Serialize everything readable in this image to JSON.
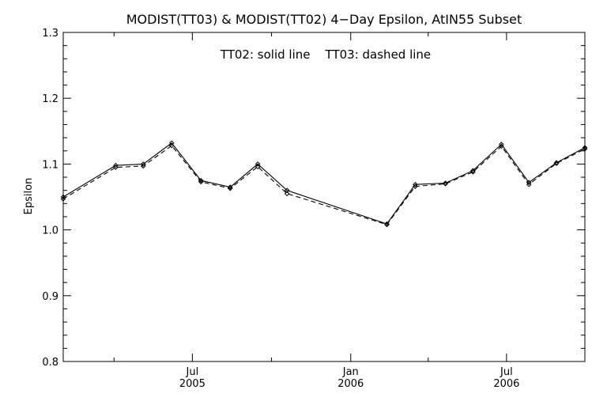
{
  "chart_data": {
    "type": "line",
    "title": "MODIST(TT03) & MODIST(TT02) 4−Day Epsilon, AtIN55 Subset",
    "annotation": "TT02: solid line    TT03: dashed line",
    "xlabel": "",
    "ylabel": "Epsilon",
    "x_type": "date",
    "xlim": [
      "2005-02-01",
      "2006-09-30"
    ],
    "ylim": [
      0.8,
      1.3
    ],
    "y_ticks": [
      0.8,
      0.9,
      1.0,
      1.1,
      1.2,
      1.3
    ],
    "y_tick_labels": [
      "0.8",
      "0.9",
      "1.0",
      "1.1",
      "1.2",
      "1.3"
    ],
    "x_major_ticks": [
      {
        "date": "2005-07-01",
        "label": "Jul",
        "year": "2005"
      },
      {
        "date": "2006-01-01",
        "label": "Jan",
        "year": "2006"
      },
      {
        "date": "2006-07-01",
        "label": "Jul",
        "year": "2006"
      }
    ],
    "x_minor_ticks": [
      "2005-04-01",
      "2005-10-01",
      "2006-04-01"
    ],
    "grid": false,
    "series": [
      {
        "name": "TT02",
        "style": "solid",
        "color": "#000000",
        "points": [
          {
            "x": "2005-02-01",
            "y": 1.05
          },
          {
            "x": "2005-04-03",
            "y": 1.098
          },
          {
            "x": "2005-05-05",
            "y": 1.1
          },
          {
            "x": "2005-06-07",
            "y": 1.132
          },
          {
            "x": "2005-07-11",
            "y": 1.075
          },
          {
            "x": "2005-08-14",
            "y": 1.065
          },
          {
            "x": "2005-09-15",
            "y": 1.1
          },
          {
            "x": "2005-10-19",
            "y": 1.06
          },
          {
            "x": "2006-02-12",
            "y": 1.009
          },
          {
            "x": "2006-03-17",
            "y": 1.069
          },
          {
            "x": "2006-04-21",
            "y": 1.071
          },
          {
            "x": "2006-05-23",
            "y": 1.09
          },
          {
            "x": "2006-06-25",
            "y": 1.13
          },
          {
            "x": "2006-07-27",
            "y": 1.072
          },
          {
            "x": "2006-08-28",
            "y": 1.102
          },
          {
            "x": "2006-09-30",
            "y": 1.125
          }
        ]
      },
      {
        "name": "TT03",
        "style": "dashed",
        "color": "#000000",
        "points": [
          {
            "x": "2005-02-01",
            "y": 1.047
          },
          {
            "x": "2005-04-03",
            "y": 1.095
          },
          {
            "x": "2005-05-05",
            "y": 1.097
          },
          {
            "x": "2005-06-07",
            "y": 1.128
          },
          {
            "x": "2005-07-11",
            "y": 1.073
          },
          {
            "x": "2005-08-14",
            "y": 1.063
          },
          {
            "x": "2005-09-15",
            "y": 1.096
          },
          {
            "x": "2005-10-19",
            "y": 1.055
          },
          {
            "x": "2006-02-12",
            "y": 1.008
          },
          {
            "x": "2006-03-17",
            "y": 1.066
          },
          {
            "x": "2006-04-21",
            "y": 1.07
          },
          {
            "x": "2006-05-23",
            "y": 1.088
          },
          {
            "x": "2006-06-25",
            "y": 1.127
          },
          {
            "x": "2006-07-27",
            "y": 1.069
          },
          {
            "x": "2006-08-28",
            "y": 1.101
          },
          {
            "x": "2006-09-30",
            "y": 1.123
          }
        ]
      }
    ]
  }
}
